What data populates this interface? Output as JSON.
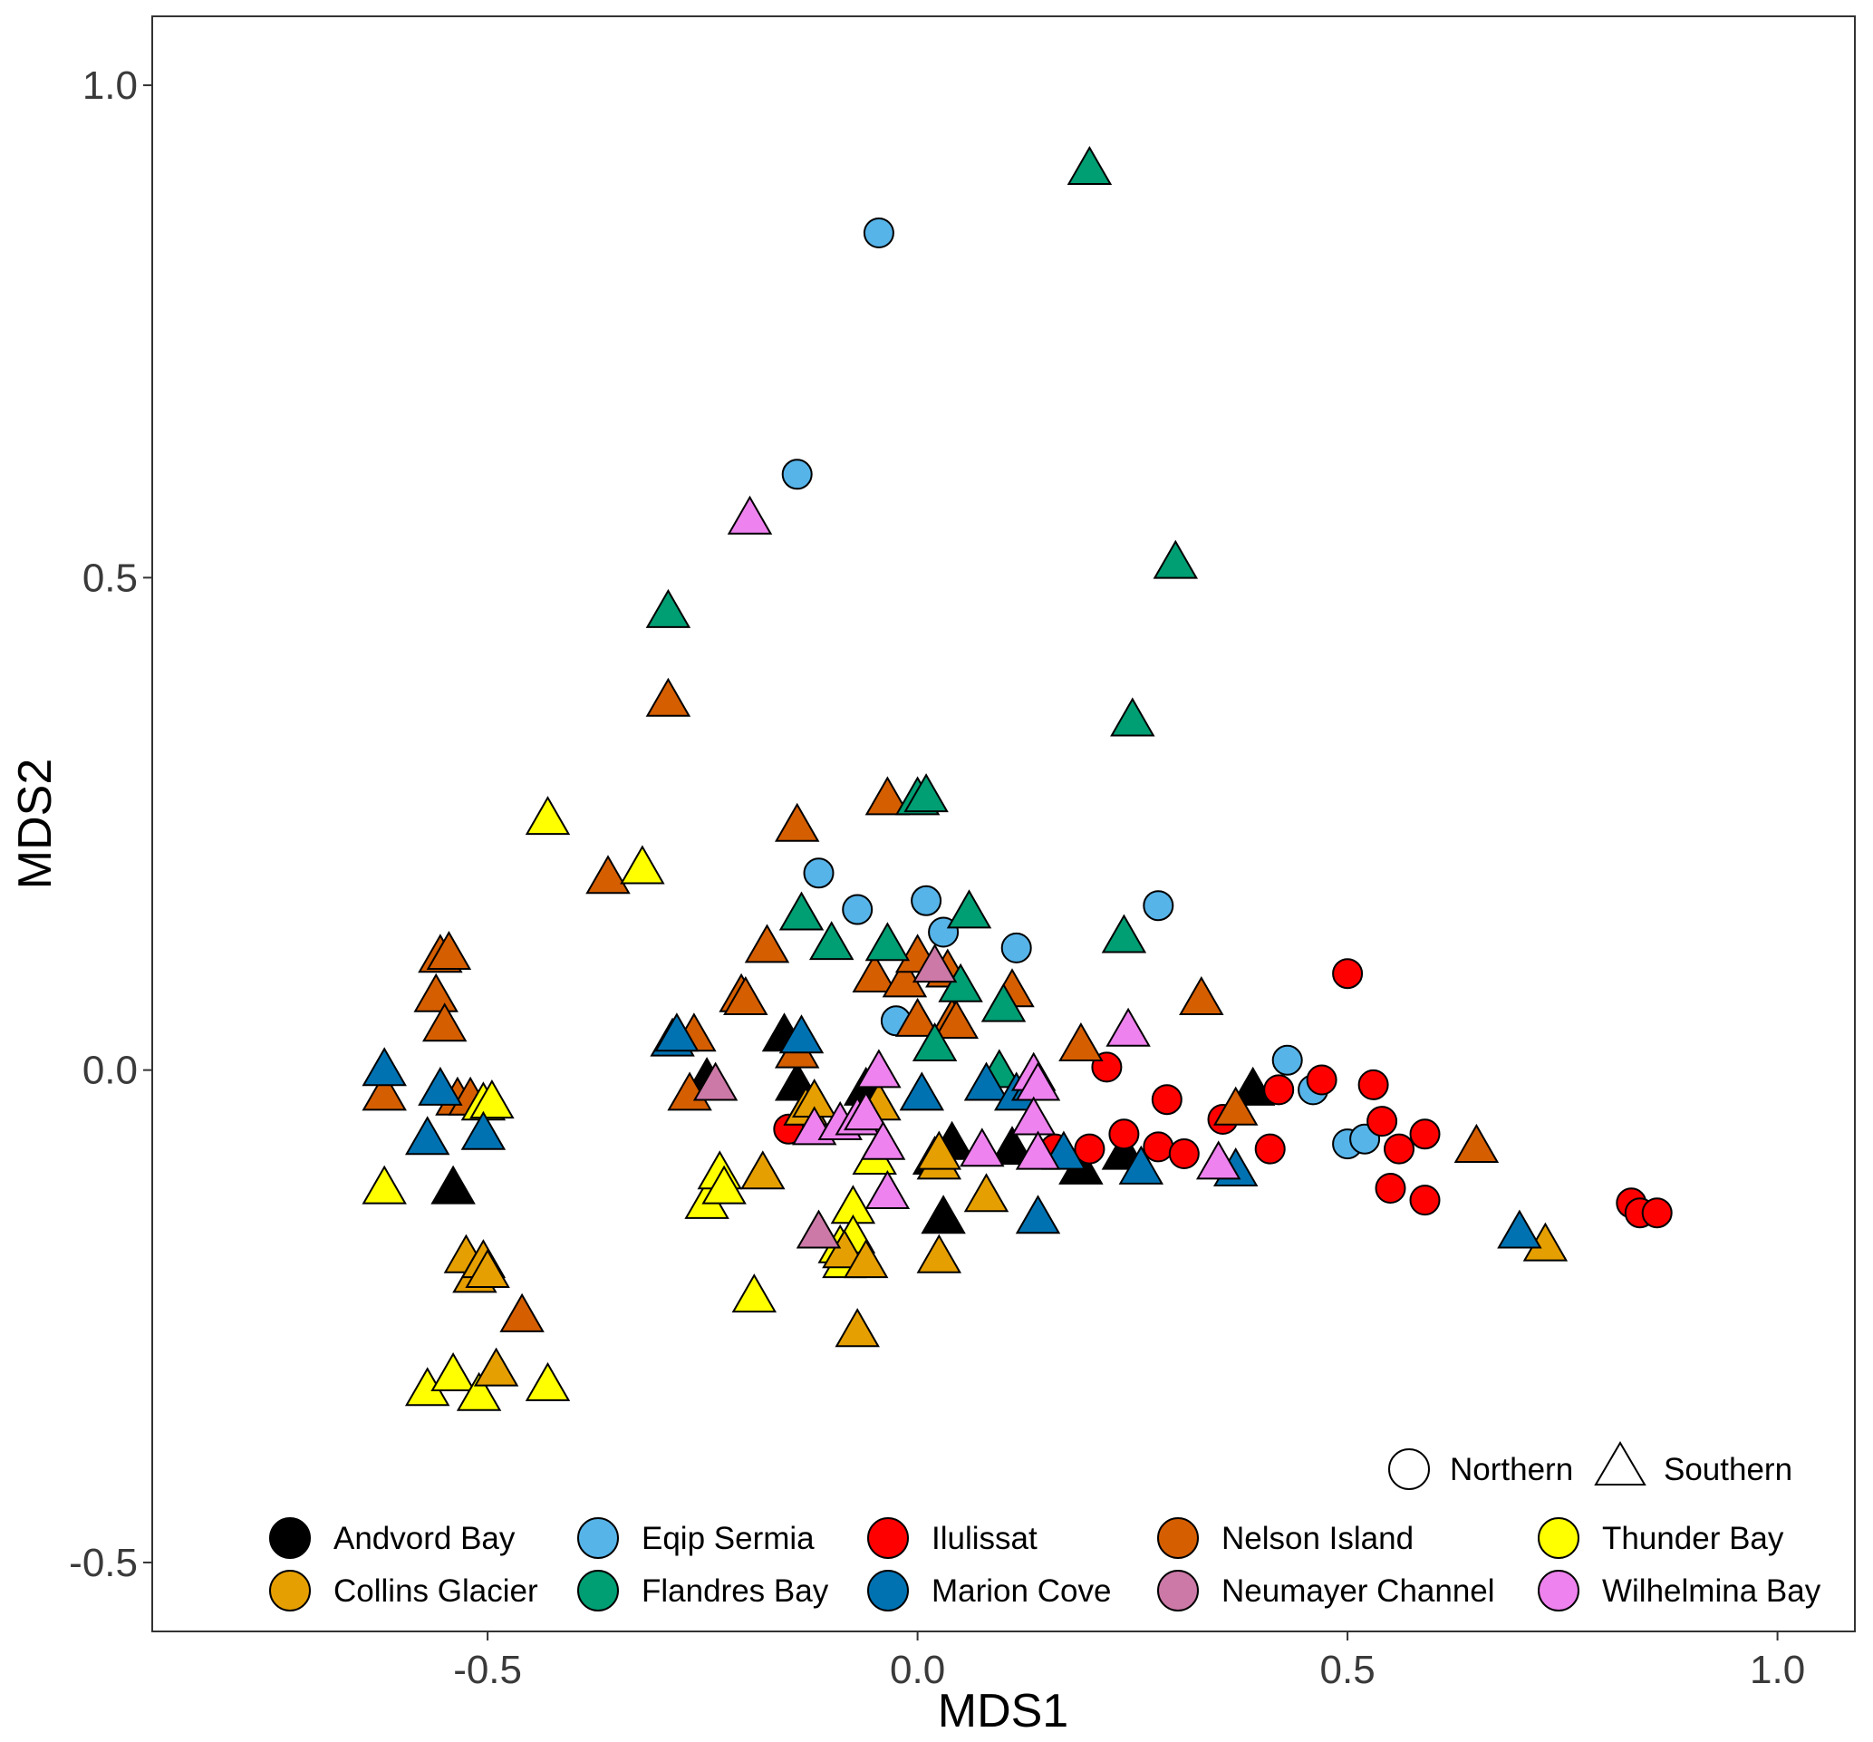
{
  "chart_data": {
    "type": "scatter",
    "title": "",
    "xlabel": "MDS1",
    "ylabel": "MDS2",
    "xlim": [
      -0.89,
      1.09
    ],
    "ylim": [
      -0.57,
      1.07
    ],
    "xticks": [
      -0.5,
      0.0,
      0.5,
      1.0
    ],
    "xtick_labels": [
      "-0.5",
      "0.0",
      "0.5",
      "1.0"
    ],
    "yticks": [
      -0.5,
      0.0,
      0.5,
      1.0
    ],
    "ytick_labels": [
      "-0.5",
      "0.0",
      "0.5",
      "1.0"
    ],
    "grid": false,
    "shape_legend": [
      {
        "label": "Northern",
        "shape": "circle"
      },
      {
        "label": "Southern",
        "shape": "triangle"
      }
    ],
    "site_legend": [
      {
        "label": "Andvord Bay",
        "color": "#000000"
      },
      {
        "label": "Eqip Sermia",
        "color": "#56B4E9"
      },
      {
        "label": "Ilulissat",
        "color": "#FF0000"
      },
      {
        "label": "Nelson Island",
        "color": "#D55E00"
      },
      {
        "label": "Thunder Bay",
        "color": "#FFFF00"
      },
      {
        "label": "Collins Glacier",
        "color": "#E69F00"
      },
      {
        "label": "Flandres Bay",
        "color": "#009E73"
      },
      {
        "label": "Marion Cove",
        "color": "#0072B2"
      },
      {
        "label": "Neumayer Channel",
        "color": "#CC79A7"
      },
      {
        "label": "Wilhelmina Bay",
        "color": "#EE82EE"
      }
    ],
    "series": [
      {
        "name": "Andvord Bay",
        "shape": "triangle",
        "color": "#000000",
        "points": [
          [
            -0.54,
            -0.12
          ],
          [
            -0.245,
            -0.01
          ],
          [
            -0.155,
            0.035
          ],
          [
            -0.14,
            -0.015
          ],
          [
            -0.06,
            -0.02
          ],
          [
            0.02,
            -0.09
          ],
          [
            0.04,
            -0.075
          ],
          [
            0.03,
            -0.15
          ],
          [
            0.11,
            -0.08
          ],
          [
            0.19,
            -0.1
          ],
          [
            0.24,
            -0.085
          ],
          [
            0.39,
            -0.02
          ]
        ]
      },
      {
        "name": "Eqip Sermia",
        "shape": "circle",
        "color": "#56B4E9",
        "points": [
          [
            -0.045,
            0.85
          ],
          [
            -0.14,
            0.605
          ],
          [
            -0.115,
            0.2
          ],
          [
            -0.07,
            0.163
          ],
          [
            0.01,
            0.172
          ],
          [
            0.03,
            0.14
          ],
          [
            0.115,
            0.124
          ],
          [
            -0.025,
            0.05
          ],
          [
            0.28,
            0.167
          ],
          [
            0.43,
            0.01
          ],
          [
            0.46,
            -0.02
          ],
          [
            0.5,
            -0.075
          ],
          [
            0.52,
            -0.07
          ]
        ]
      },
      {
        "name": "Ilulissat",
        "shape": "circle",
        "color": "#FF0000",
        "points": [
          [
            -0.15,
            -0.06
          ],
          [
            0.22,
            0.003
          ],
          [
            0.29,
            -0.03
          ],
          [
            0.16,
            -0.08
          ],
          [
            0.2,
            -0.08
          ],
          [
            0.24,
            -0.065
          ],
          [
            0.28,
            -0.078
          ],
          [
            0.31,
            -0.085
          ],
          [
            0.355,
            -0.05
          ],
          [
            0.41,
            -0.08
          ],
          [
            0.42,
            -0.02
          ],
          [
            0.47,
            -0.01
          ],
          [
            0.5,
            0.098
          ],
          [
            0.53,
            -0.015
          ],
          [
            0.54,
            -0.052
          ],
          [
            0.56,
            -0.08
          ],
          [
            0.59,
            -0.065
          ],
          [
            0.55,
            -0.12
          ],
          [
            0.59,
            -0.132
          ],
          [
            0.83,
            -0.135
          ],
          [
            0.84,
            -0.145
          ],
          [
            0.86,
            -0.145
          ]
        ]
      },
      {
        "name": "Nelson Island",
        "shape": "triangle",
        "color": "#D55E00",
        "points": [
          [
            -0.62,
            -0.025
          ],
          [
            -0.555,
            0.115
          ],
          [
            -0.545,
            0.118
          ],
          [
            -0.56,
            0.075
          ],
          [
            -0.55,
            0.045
          ],
          [
            -0.535,
            -0.03
          ],
          [
            -0.52,
            -0.03
          ],
          [
            -0.46,
            -0.25
          ],
          [
            -0.36,
            0.195
          ],
          [
            -0.29,
            0.375
          ],
          [
            -0.26,
            0.035
          ],
          [
            -0.265,
            -0.025
          ],
          [
            -0.205,
            0.075
          ],
          [
            -0.2,
            0.072
          ],
          [
            -0.175,
            0.125
          ],
          [
            -0.14,
            0.248
          ],
          [
            -0.14,
            0.018
          ],
          [
            -0.13,
            -0.04
          ],
          [
            -0.035,
            0.275
          ],
          [
            -0.05,
            0.095
          ],
          [
            -0.015,
            0.09
          ],
          [
            0.0,
            0.115
          ],
          [
            0.0,
            0.05
          ],
          [
            0.04,
            0.05
          ],
          [
            0.045,
            0.048
          ],
          [
            0.035,
            0.1
          ],
          [
            0.11,
            0.08
          ],
          [
            0.19,
            0.025
          ],
          [
            0.33,
            0.072
          ],
          [
            0.37,
            -0.04
          ],
          [
            0.65,
            -0.078
          ]
        ]
      },
      {
        "name": "Thunder Bay",
        "shape": "triangle",
        "color": "#FFFF00",
        "points": [
          [
            -0.62,
            -0.12
          ],
          [
            -0.57,
            -0.325
          ],
          [
            -0.54,
            -0.31
          ],
          [
            -0.51,
            -0.33
          ],
          [
            -0.505,
            -0.035
          ],
          [
            -0.495,
            -0.033
          ],
          [
            -0.43,
            0.255
          ],
          [
            -0.43,
            -0.32
          ],
          [
            -0.32,
            0.205
          ],
          [
            -0.245,
            -0.135
          ],
          [
            -0.23,
            -0.105
          ],
          [
            -0.225,
            -0.12
          ],
          [
            -0.19,
            -0.23
          ],
          [
            -0.09,
            -0.18
          ],
          [
            -0.085,
            -0.195
          ],
          [
            -0.075,
            -0.14
          ],
          [
            -0.075,
            -0.17
          ],
          [
            -0.05,
            -0.09
          ]
        ]
      },
      {
        "name": "Collins Glacier",
        "shape": "triangle",
        "color": "#E69F00",
        "points": [
          [
            -0.525,
            -0.19
          ],
          [
            -0.515,
            -0.21
          ],
          [
            -0.505,
            -0.195
          ],
          [
            -0.5,
            -0.205
          ],
          [
            -0.49,
            -0.305
          ],
          [
            -0.18,
            -0.105
          ],
          [
            -0.13,
            -0.04
          ],
          [
            -0.12,
            -0.032
          ],
          [
            -0.085,
            -0.185
          ],
          [
            -0.07,
            -0.265
          ],
          [
            -0.06,
            -0.195
          ],
          [
            -0.045,
            -0.035
          ],
          [
            0.025,
            -0.095
          ],
          [
            0.025,
            -0.085
          ],
          [
            0.025,
            -0.19
          ],
          [
            0.08,
            -0.128
          ],
          [
            0.73,
            -0.178
          ]
        ]
      },
      {
        "name": "Flandres Bay",
        "shape": "triangle",
        "color": "#009E73",
        "points": [
          [
            0.2,
            0.915
          ],
          [
            -0.29,
            0.465
          ],
          [
            0.3,
            0.515
          ],
          [
            0.25,
            0.355
          ],
          [
            0.0,
            0.275
          ],
          [
            0.01,
            0.278
          ],
          [
            -0.135,
            0.158
          ],
          [
            -0.1,
            0.128
          ],
          [
            -0.035,
            0.127
          ],
          [
            0.06,
            0.16
          ],
          [
            0.05,
            0.085
          ],
          [
            0.1,
            0.065
          ],
          [
            0.02,
            0.025
          ],
          [
            0.095,
            -0.002
          ],
          [
            0.24,
            0.135
          ]
        ]
      },
      {
        "name": "Marion Cove",
        "shape": "triangle",
        "color": "#0072B2",
        "points": [
          [
            -0.62,
            0.0
          ],
          [
            -0.57,
            -0.07
          ],
          [
            -0.555,
            -0.02
          ],
          [
            -0.505,
            -0.065
          ],
          [
            -0.285,
            0.03
          ],
          [
            -0.28,
            0.035
          ],
          [
            -0.135,
            0.033
          ],
          [
            0.005,
            -0.025
          ],
          [
            0.08,
            -0.015
          ],
          [
            0.115,
            -0.025
          ],
          [
            0.135,
            -0.015
          ],
          [
            0.14,
            -0.15
          ],
          [
            0.17,
            -0.085
          ],
          [
            0.26,
            -0.1
          ],
          [
            0.37,
            -0.102
          ],
          [
            0.7,
            -0.165
          ]
        ]
      },
      {
        "name": "Neumayer Channel",
        "shape": "triangle",
        "color": "#CC79A7",
        "points": [
          [
            -0.235,
            -0.015
          ],
          [
            -0.115,
            -0.165
          ],
          [
            0.02,
            0.105
          ]
        ]
      },
      {
        "name": "Wilhelmina Bay",
        "shape": "triangle",
        "color": "#EE82EE",
        "points": [
          [
            -0.195,
            0.56
          ],
          [
            -0.12,
            -0.06
          ],
          [
            -0.09,
            -0.055
          ],
          [
            -0.07,
            -0.05
          ],
          [
            -0.06,
            -0.045
          ],
          [
            -0.045,
            -0.002
          ],
          [
            -0.04,
            -0.075
          ],
          [
            -0.035,
            -0.125
          ],
          [
            0.075,
            -0.082
          ],
          [
            0.135,
            -0.005
          ],
          [
            0.14,
            -0.015
          ],
          [
            0.135,
            -0.05
          ],
          [
            0.14,
            -0.085
          ],
          [
            0.245,
            0.04
          ],
          [
            0.35,
            -0.095
          ]
        ]
      }
    ]
  }
}
